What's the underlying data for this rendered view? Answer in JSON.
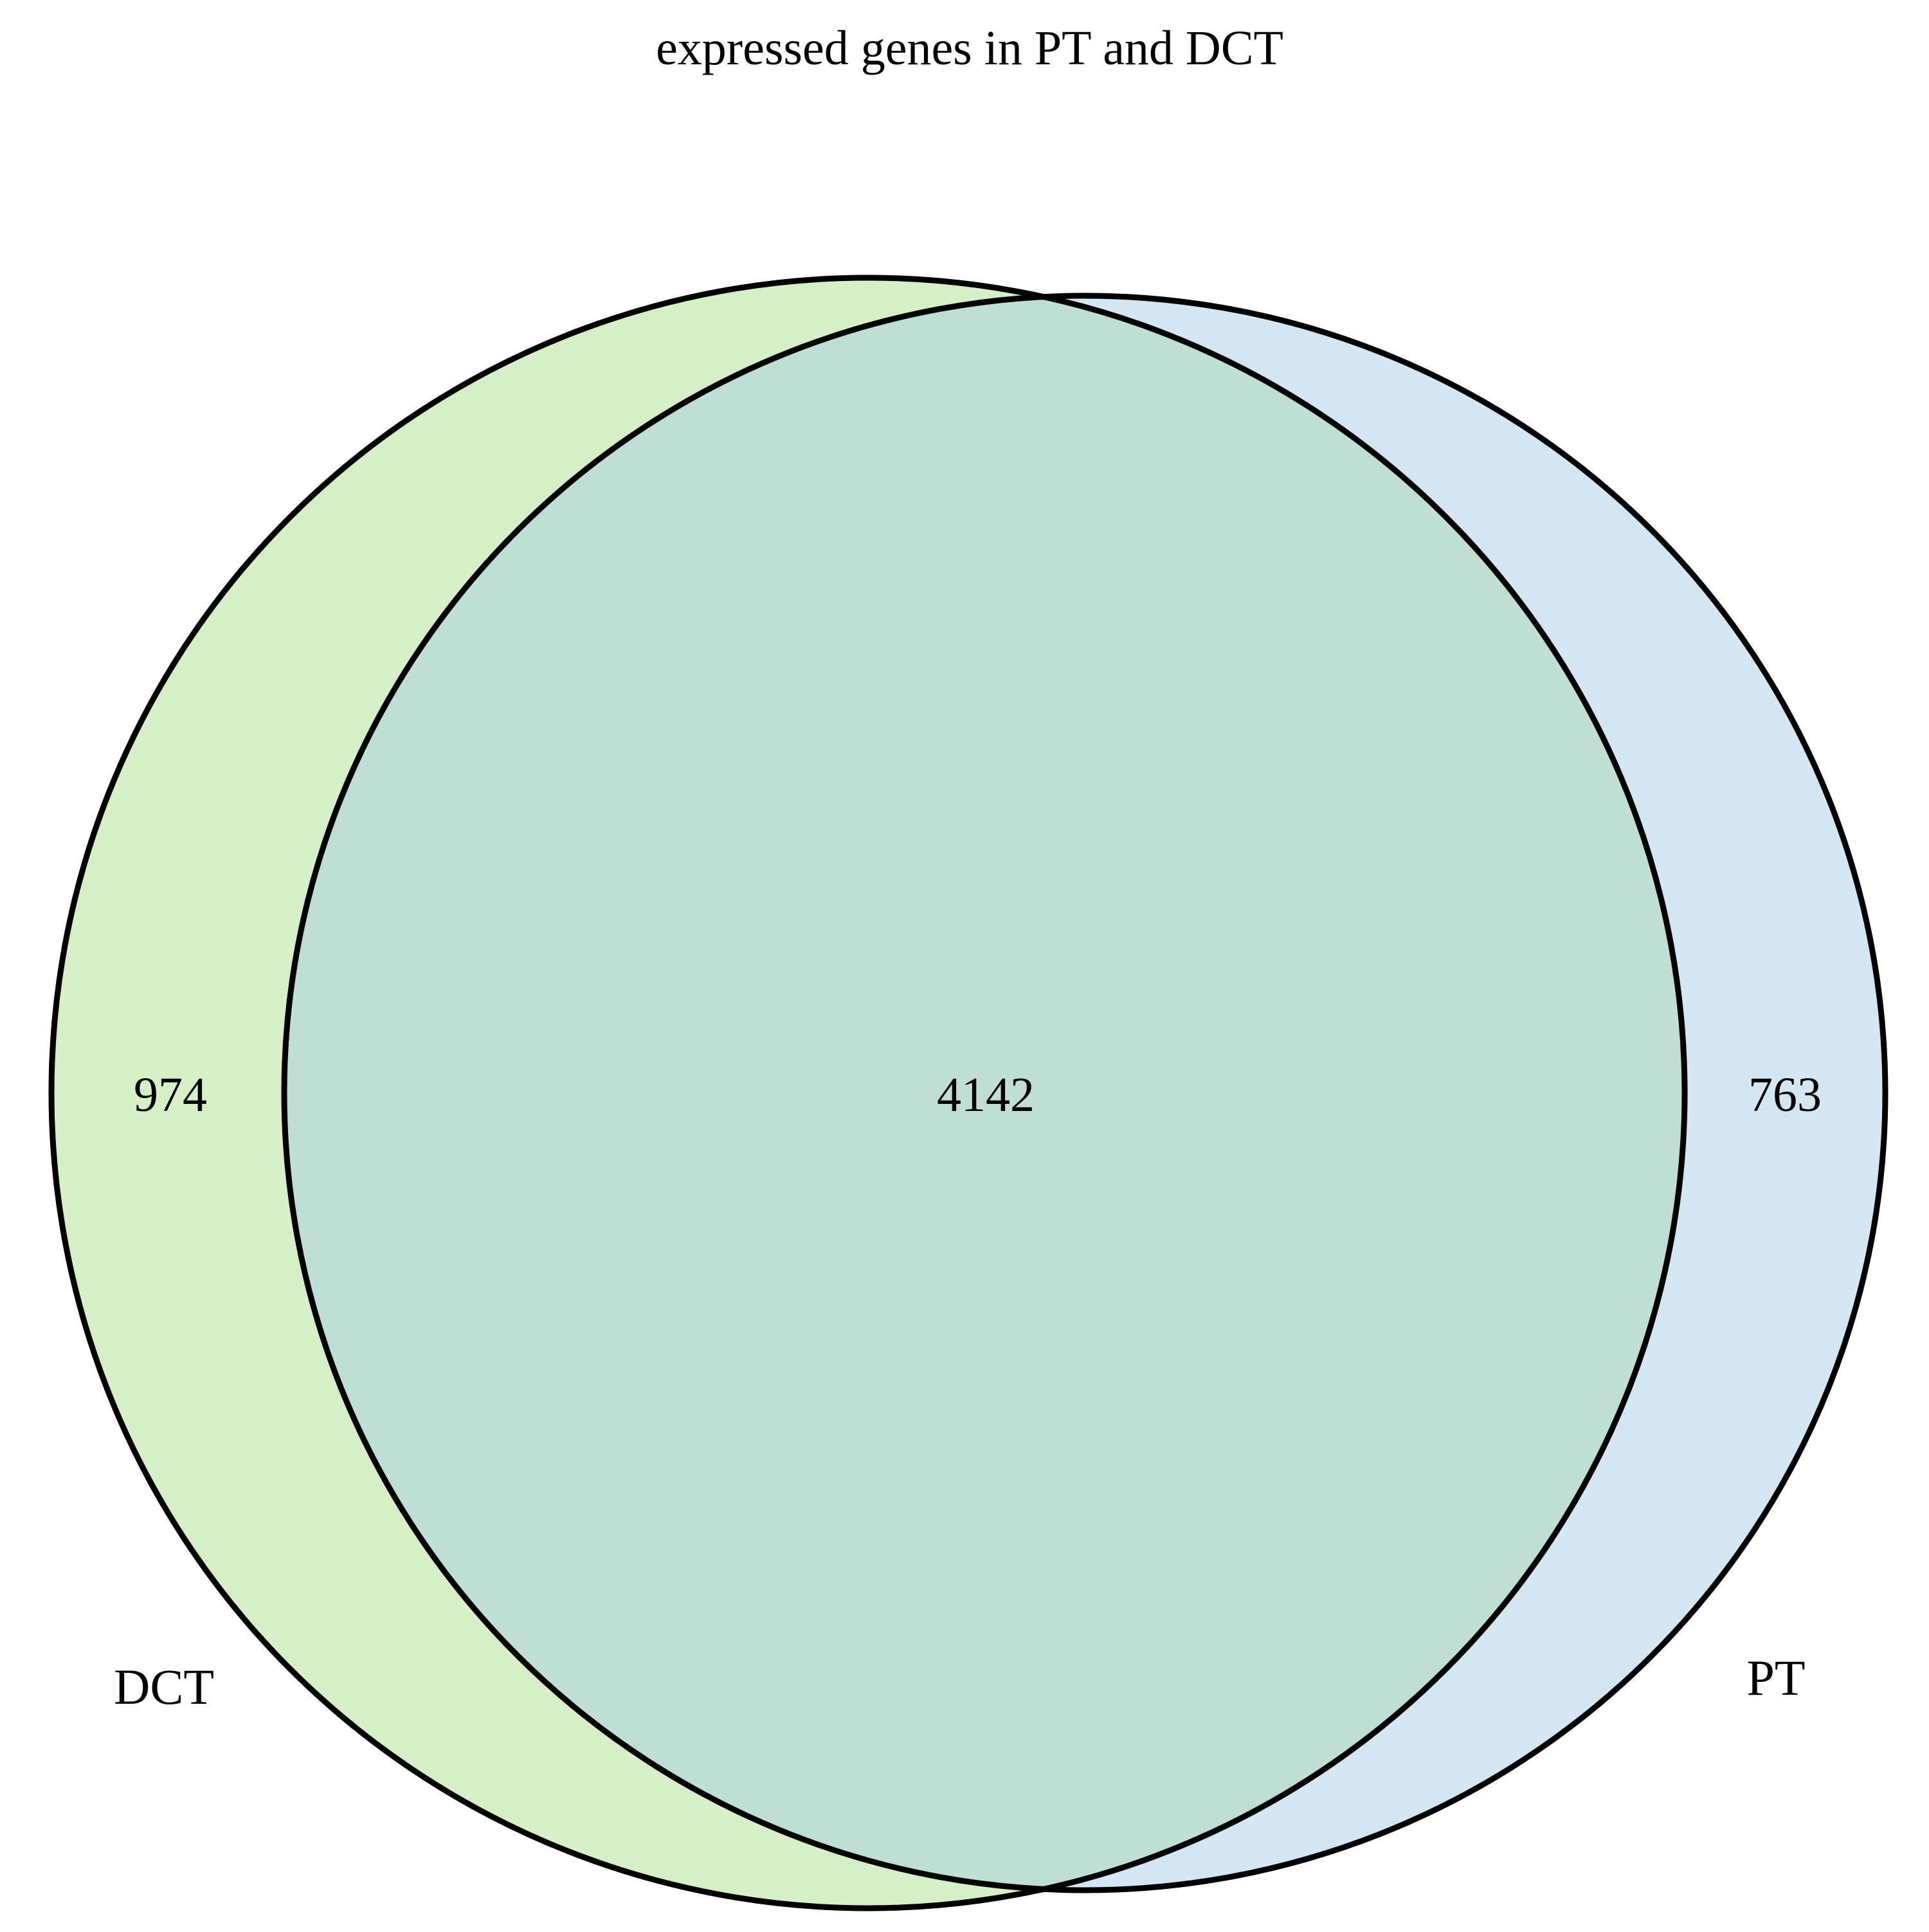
{
  "title": "expressed genes in PT and DCT",
  "sets": [
    {
      "name": "DCT",
      "only_count": "974",
      "fill": "#d7efc6"
    },
    {
      "name": "PT",
      "only_count": "763",
      "fill": "#d3e6f1"
    }
  ],
  "overlap": {
    "count": "4142",
    "fill": "#bfdfd5"
  },
  "colors": {
    "outline": "#000000",
    "background": "#ffffff"
  }
}
